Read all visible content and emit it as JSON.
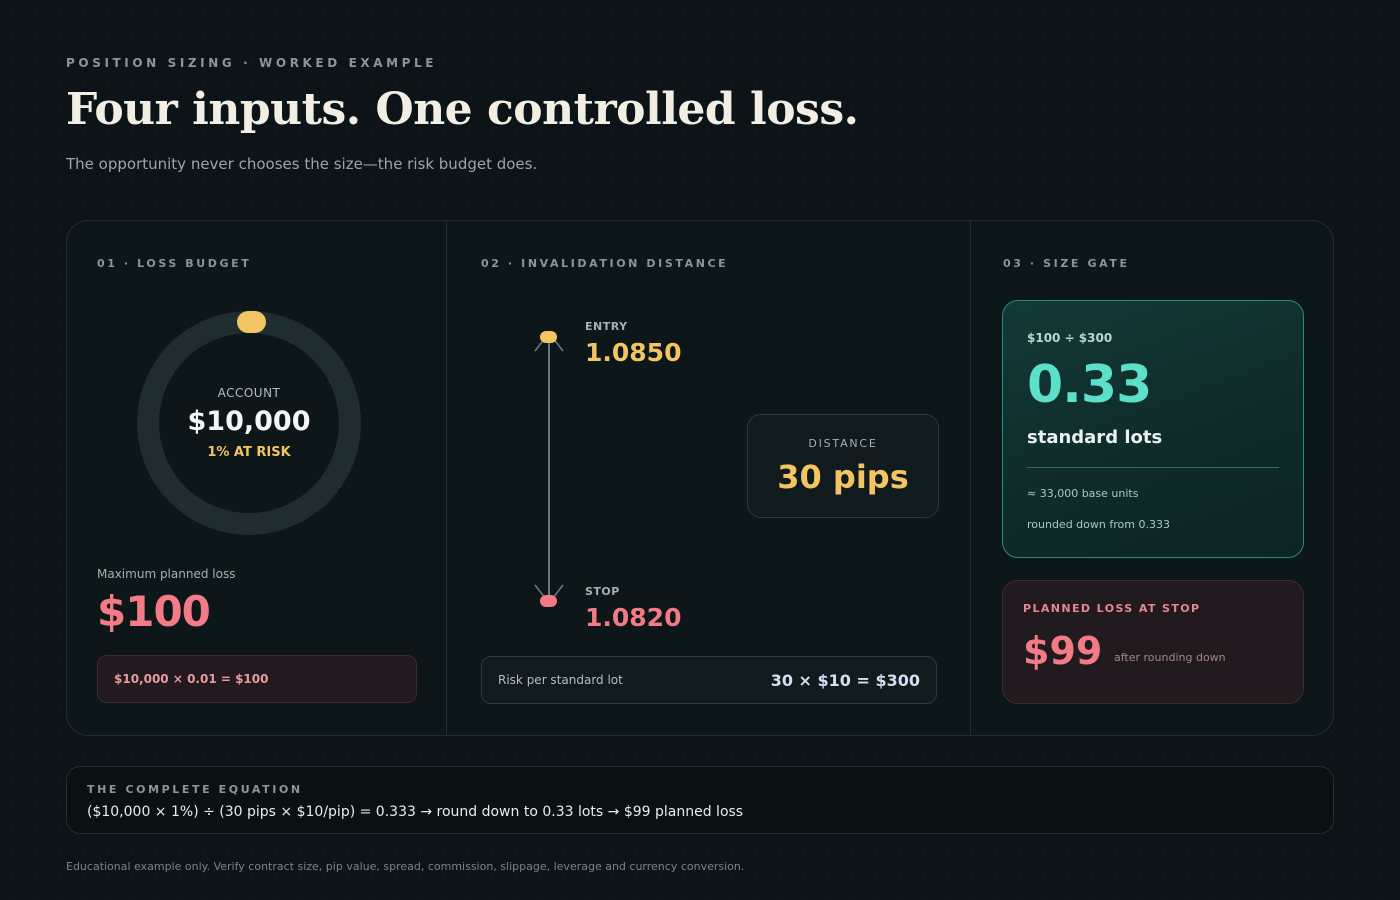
{
  "header": {
    "eyebrow": "POSITION SIZING · WORKED EXAMPLE",
    "title": "Four inputs. One controlled loss.",
    "subtitle": "The opportunity never chooses the size—the risk budget does."
  },
  "loss_budget": {
    "section_label": "01 · LOSS BUDGET",
    "account_label": "ACCOUNT",
    "account_value": "$10,000",
    "risk_label": "1% AT RISK",
    "max_loss_label": "Maximum planned loss",
    "max_loss_value": "$100",
    "calc": "$10,000 × 0.01 = $100"
  },
  "invalidation": {
    "section_label": "02 · INVALIDATION DISTANCE",
    "entry_label": "ENTRY",
    "entry_value": "1.0850",
    "stop_label": "STOP",
    "stop_value": "1.0820",
    "distance_label": "DISTANCE",
    "distance_value": "30 pips",
    "risk_per_lot_label": "Risk per standard lot",
    "risk_per_lot_value": "30 × $10 = $300"
  },
  "size_gate": {
    "section_label": "03 · SIZE GATE",
    "formula": "$100 ÷ $300",
    "value": "0.33",
    "unit": "standard lots",
    "base_units": "≈ 33,000 base units",
    "rounding": "rounded down from 0.333",
    "planned_loss_label": "PLANNED LOSS AT STOP",
    "planned_loss_value": "$99",
    "planned_loss_note": "after rounding down"
  },
  "equation": {
    "label": "THE COMPLETE EQUATION",
    "text": "($10,000 × 1%) ÷ (30 pips × $10/pip) = 0.333 → round down to 0.33 lots → $99 planned loss"
  },
  "footnote": "Educational example only. Verify contract size, pip value, spread, commission, slippage, leverage and currency conversion.",
  "colors": {
    "accent_gold": "#f2c462",
    "accent_red": "#f37b86",
    "accent_teal": "#5ce0c7",
    "background": "#0c1417"
  }
}
